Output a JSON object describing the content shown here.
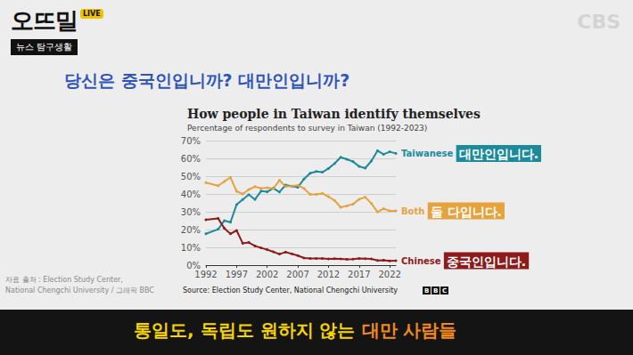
{
  "page": {
    "show": "오뜨밀",
    "live": "LIVE",
    "show_subtitle": "뉴스 탐구생활",
    "broadcaster": "CBS",
    "heading": "당신은 중국인입니까? 대만인입니까?",
    "side_note": [
      "자료 출처 : Election Study Center,",
      "National Chengchi University / 그래픽 BBC"
    ],
    "caption": "통일도, 독립도 원하지 않는",
    "caption_highlight": "대만 사람들"
  },
  "chart_data": {
    "type": "line",
    "title": "How people in Taiwan identify themselves",
    "subtitle": "Percentage of respondents to survey in Taiwan (1992-2023)",
    "source": "Source: Election Study Center, National Chengchi University",
    "logo": "BBC",
    "x": [
      1992,
      1994,
      1995,
      1996,
      1997,
      1998,
      1999,
      2000,
      2001,
      2002,
      2003,
      2004,
      2005,
      2006,
      2007,
      2008,
      2009,
      2010,
      2011,
      2012,
      2013,
      2014,
      2015,
      2016,
      2017,
      2018,
      2019,
      2020,
      2021,
      2022,
      2023
    ],
    "xlim": [
      1992,
      2023
    ],
    "xticks": [
      1992,
      1997,
      2002,
      2007,
      2012,
      2017,
      2022
    ],
    "ylim": [
      0,
      70
    ],
    "yticks": [
      {
        "value": 0,
        "label": "0%"
      },
      {
        "value": 10,
        "label": "10%"
      },
      {
        "value": 20,
        "label": "20%"
      },
      {
        "value": 30,
        "label": "30%"
      },
      {
        "value": 40,
        "label": "40%"
      },
      {
        "value": 50,
        "label": "50%"
      },
      {
        "value": 60,
        "label": "60%"
      },
      {
        "value": 70,
        "label": "70%"
      }
    ],
    "grid": true,
    "marker": "circle",
    "series": [
      {
        "name": "Taiwanese",
        "label": "대만인입니다.",
        "color": "#1b8a9b",
        "values": [
          17.6,
          20.2,
          25.0,
          24.1,
          34.0,
          36.9,
          39.6,
          36.9,
          41.6,
          41.2,
          43.2,
          41.1,
          45.0,
          44.4,
          43.7,
          48.4,
          51.6,
          52.6,
          52.2,
          54.3,
          57.1,
          60.6,
          59.5,
          58.2,
          55.5,
          54.5,
          58.5,
          64.3,
          62.3,
          63.7,
          62.8
        ]
      },
      {
        "name": "Both",
        "label": "둘 다입니다.",
        "color": "#e6a23c",
        "values": [
          46.4,
          44.6,
          47.0,
          49.3,
          41.5,
          40.0,
          42.5,
          44.1,
          43.1,
          43.5,
          43.0,
          47.7,
          44.2,
          44.4,
          44.9,
          43.1,
          39.8,
          39.8,
          40.3,
          38.5,
          36.3,
          32.5,
          33.3,
          34.3,
          37.0,
          38.2,
          34.7,
          29.9,
          31.7,
          30.5,
          30.5
        ]
      },
      {
        "name": "Chinese",
        "label": "중국인입니다.",
        "color": "#8e1b1b",
        "values": [
          25.5,
          26.2,
          20.7,
          17.6,
          19.5,
          12.3,
          12.7,
          10.8,
          9.7,
          8.7,
          7.5,
          6.2,
          7.3,
          6.4,
          5.4,
          4.0,
          3.7,
          3.7,
          3.7,
          3.5,
          3.6,
          3.5,
          3.3,
          3.4,
          3.7,
          3.6,
          3.5,
          2.6,
          2.8,
          2.4,
          2.5
        ]
      }
    ]
  }
}
